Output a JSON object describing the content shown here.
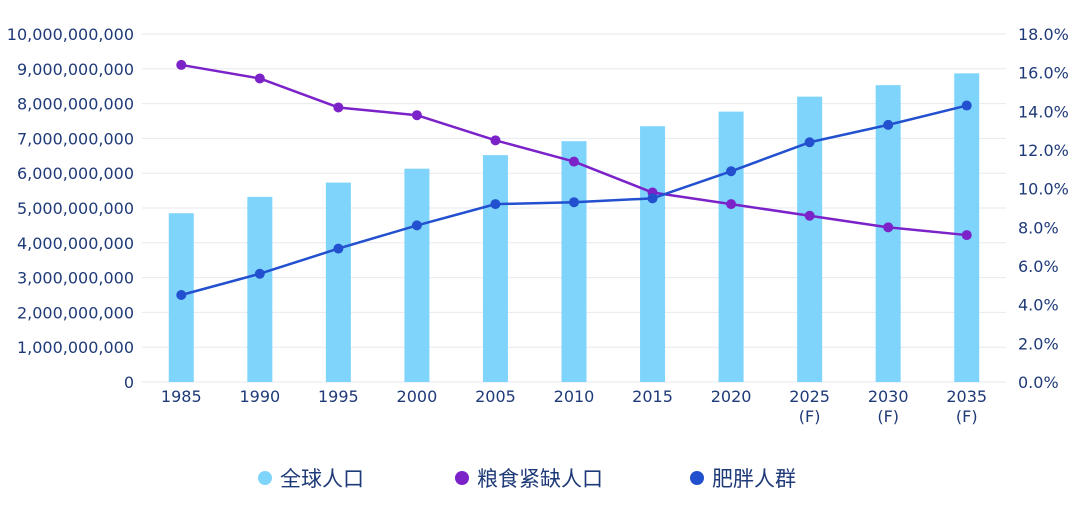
{
  "colors": {
    "population": "#7fd4fb",
    "food_shortage": "#7b22c9",
    "obesity": "#2250cf",
    "text": "#1f3a78",
    "grid": "#e6e9ef"
  },
  "chart_data": {
    "type": "bar",
    "x": [
      [
        "1985"
      ],
      [
        "1990"
      ],
      [
        "1995"
      ],
      [
        "2000"
      ],
      [
        "2005"
      ],
      [
        "2010"
      ],
      [
        "2015"
      ],
      [
        "2020"
      ],
      [
        "2025",
        "(F)"
      ],
      [
        "2030",
        "(F)"
      ],
      [
        "2035",
        "(F)"
      ]
    ],
    "left_axis": {
      "ylim": [
        0,
        10000000000
      ],
      "ticks": [
        "0",
        "1,000,000,000",
        "2,000,000,000",
        "3,000,000,000",
        "4,000,000,000",
        "5,000,000,000",
        "6,000,000,000",
        "7,000,000,000",
        "8,000,000,000",
        "9,000,000,000",
        "10,000,000,000"
      ]
    },
    "right_axis": {
      "ylim": [
        0,
        18
      ],
      "ticks": [
        "0.0%",
        "2.0%",
        "4.0%",
        "6.0%",
        "8.0%",
        "10.0%",
        "12.0%",
        "14.0%",
        "16.0%",
        "18.0%"
      ]
    },
    "grid": true,
    "legend_position": "bottom",
    "series": [
      {
        "name": "全球人口",
        "type": "bar",
        "axis": "left",
        "color": "#7fd4fb",
        "values": [
          4850000000,
          5320000000,
          5730000000,
          6130000000,
          6520000000,
          6920000000,
          7350000000,
          7770000000,
          8200000000,
          8530000000,
          8870000000
        ]
      },
      {
        "name": "粮食紧缺人口",
        "type": "line",
        "axis": "right",
        "color": "#7b22c9",
        "values": [
          16.4,
          15.7,
          14.2,
          13.8,
          12.5,
          11.4,
          9.8,
          9.2,
          8.6,
          8.0,
          7.6
        ]
      },
      {
        "name": "肥胖人群",
        "type": "line",
        "axis": "right",
        "color": "#2250cf",
        "values": [
          4.5,
          5.6,
          6.9,
          8.1,
          9.2,
          9.3,
          9.5,
          10.9,
          12.4,
          13.3,
          14.3
        ]
      }
    ]
  }
}
